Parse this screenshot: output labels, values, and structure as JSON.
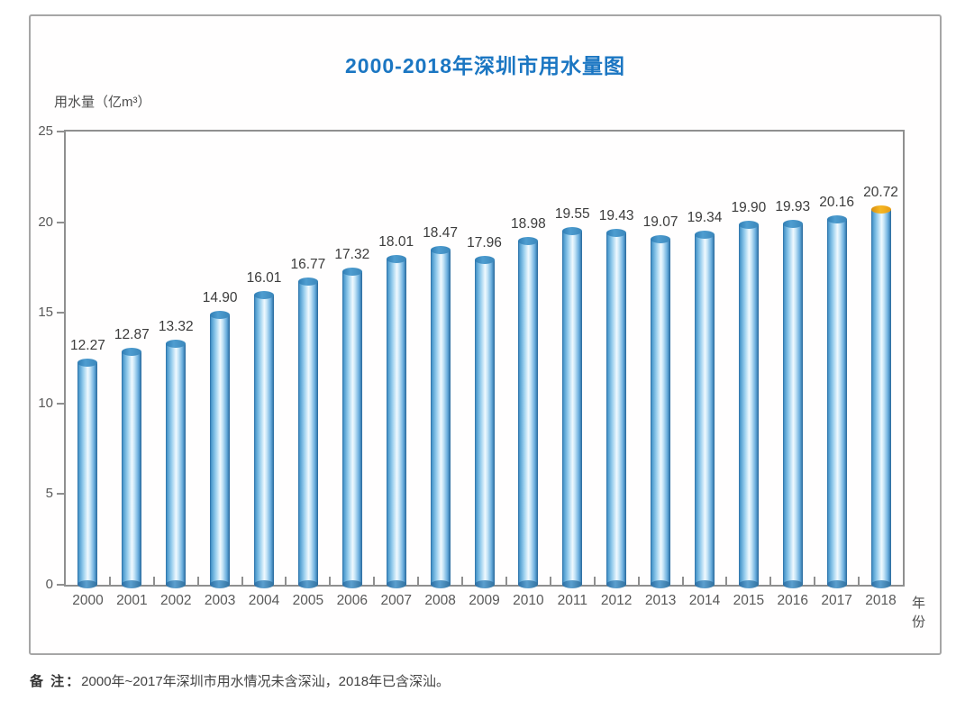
{
  "page": {
    "title": "2000-2018年深圳市用水量图",
    "y_axis_unit": "用水量（亿m³）",
    "x_axis_title": "年份",
    "note_label": "备 注：",
    "note_text": "2000年~2017年深圳市用水情况未含深汕，2018年已含深汕。"
  },
  "chart_data": {
    "type": "bar",
    "title": "2000-2018年深圳市用水量图",
    "categories": [
      "2000",
      "2001",
      "2002",
      "2003",
      "2004",
      "2005",
      "2006",
      "2007",
      "2008",
      "2009",
      "2010",
      "2011",
      "2012",
      "2013",
      "2014",
      "2015",
      "2016",
      "2017",
      "2018"
    ],
    "values": [
      12.27,
      12.87,
      13.32,
      14.9,
      16.01,
      16.77,
      17.32,
      18.01,
      18.47,
      17.96,
      18.98,
      19.55,
      19.43,
      19.07,
      19.34,
      19.9,
      19.93,
      20.16,
      20.72
    ],
    "value_labels": [
      "12.27",
      "12.87",
      "13.32",
      "14.90",
      "16.01",
      "16.77",
      "17.32",
      "18.01",
      "18.47",
      "17.96",
      "18.98",
      "19.55",
      "19.43",
      "19.07",
      "19.34",
      "19.90",
      "19.93",
      "20.16",
      "20.72"
    ],
    "xlabel": "年份",
    "ylabel": "用水量（亿m³）",
    "ylim": [
      0,
      25
    ],
    "yticks": [
      0,
      5,
      10,
      15,
      20,
      25
    ],
    "grid": false,
    "legend_position": "none",
    "bar_style": "cylinder",
    "bar_edge_color": "#2a6da3",
    "bar_center_color": "#f0f9fe",
    "cap_color": "#3f8fc1",
    "highlight_index": 18,
    "highlight_cap_color": "#f0a71c",
    "title_color": "#1b76c2"
  }
}
